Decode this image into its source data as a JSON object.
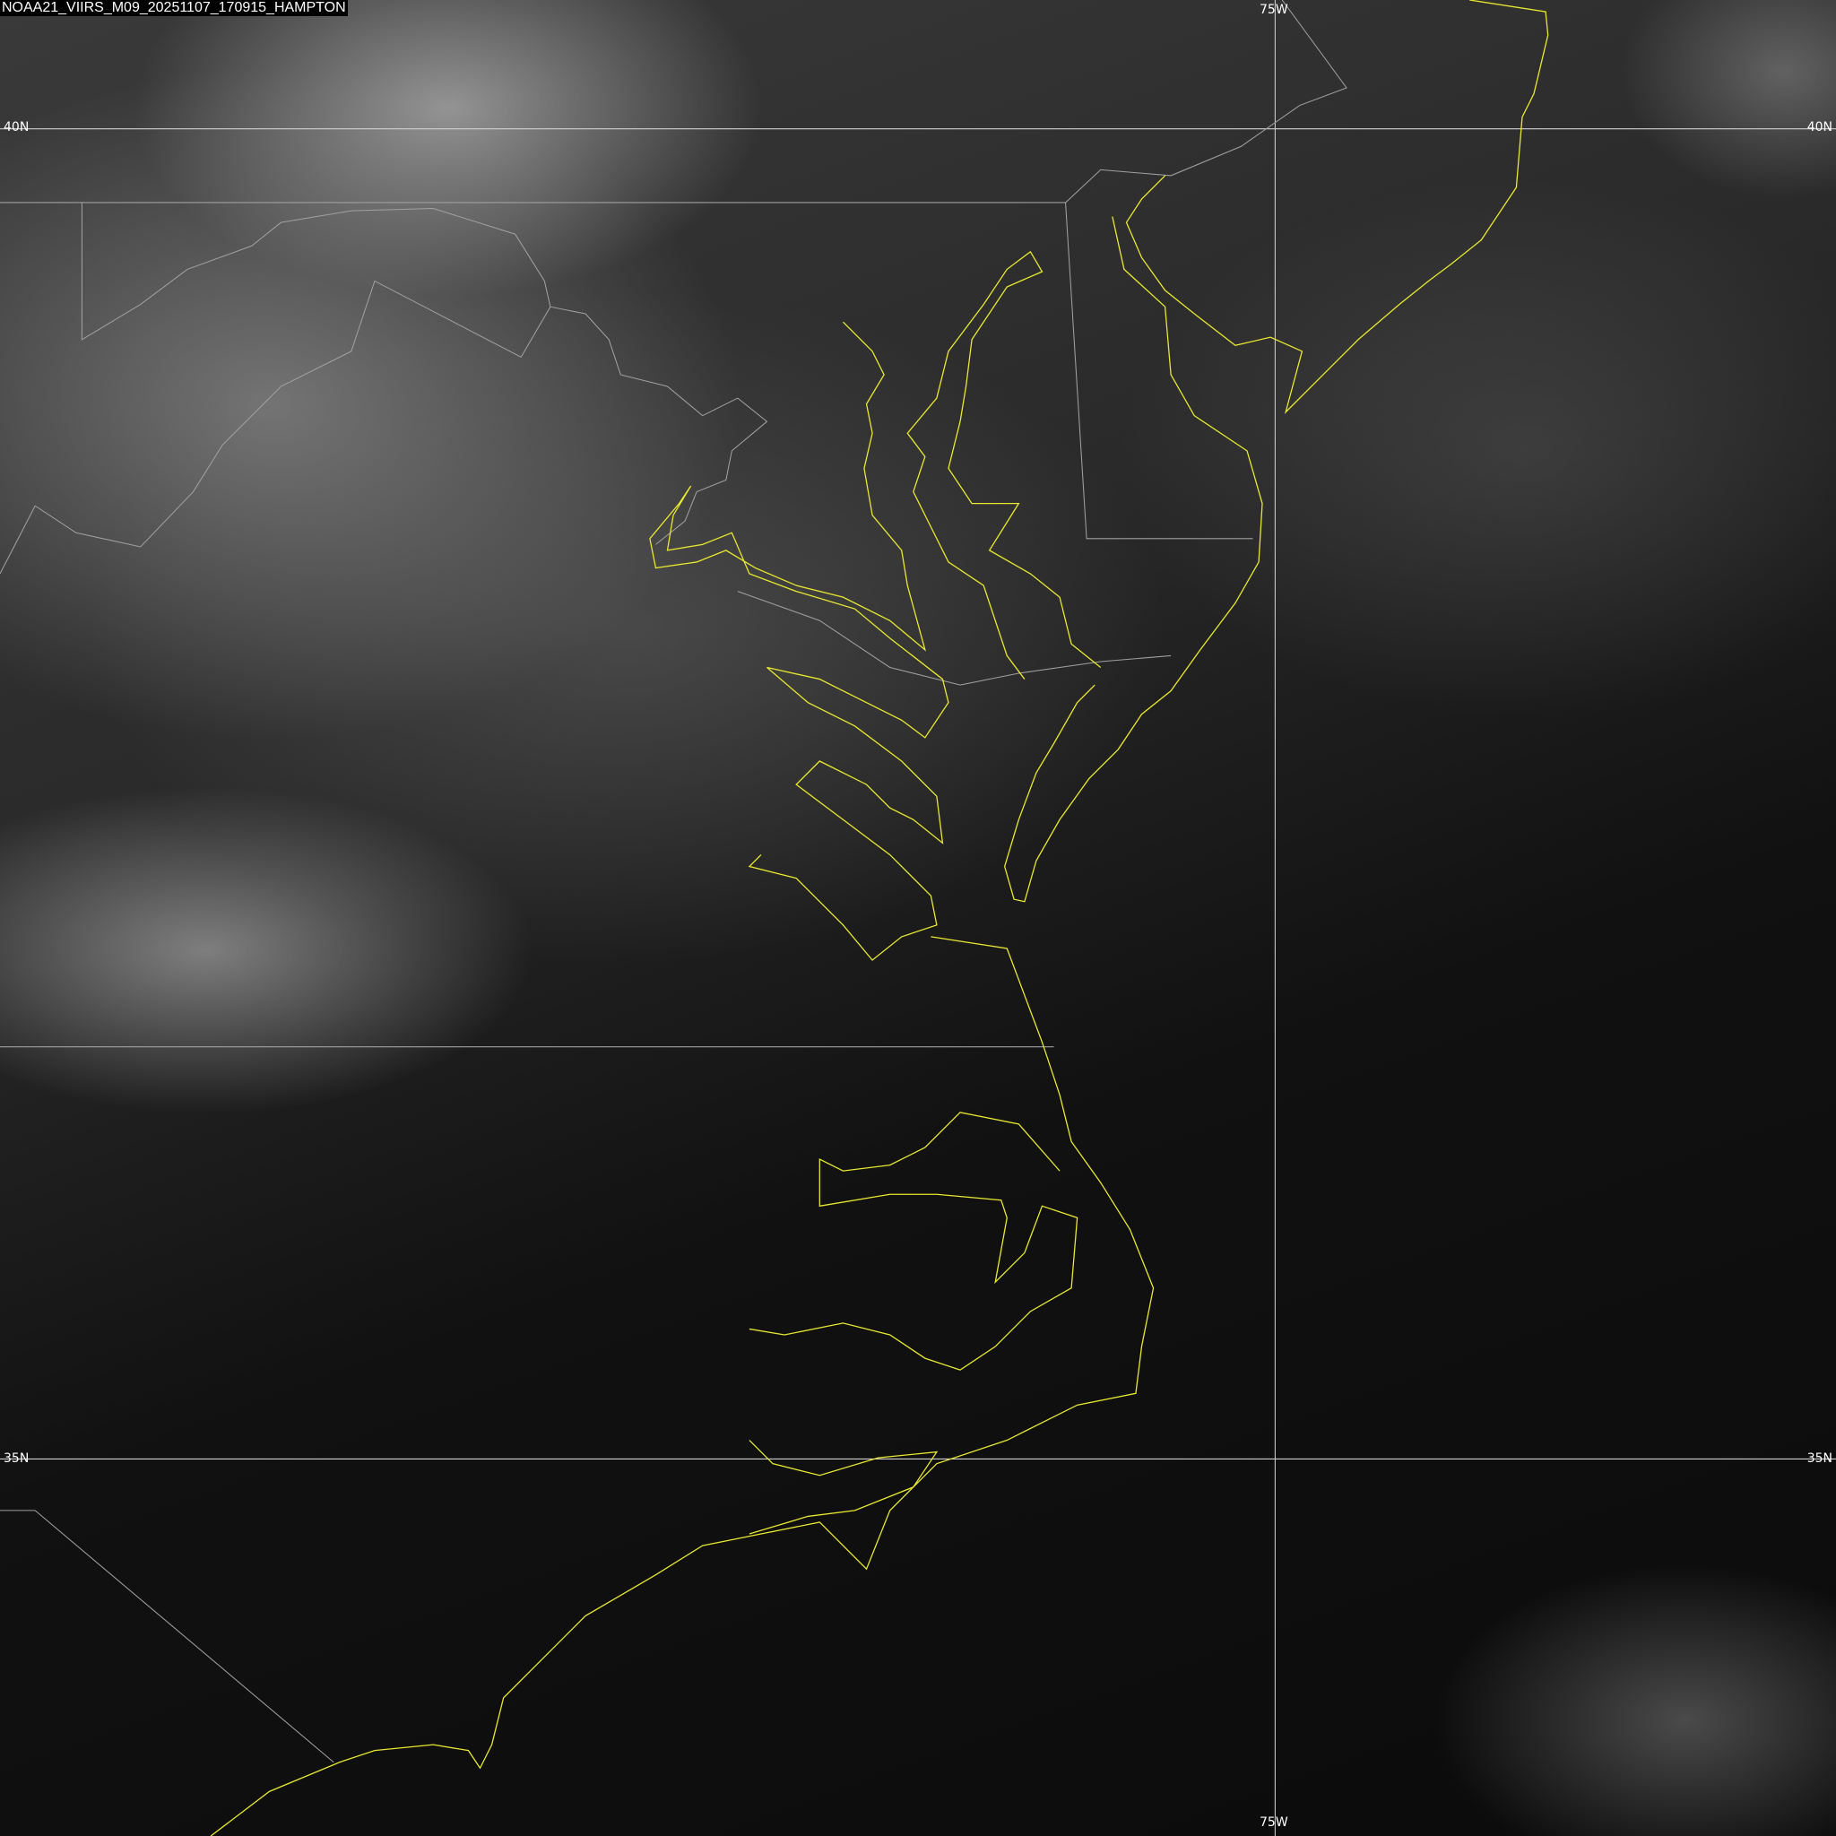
{
  "title": "NOAA21_VIIRS_M09_20251107_170915_HAMPTON",
  "grid": {
    "lon_label_top": "75W",
    "lon_label_bottom": "75W",
    "lat_40_left": "40N",
    "lat_40_right": "40N",
    "lat_35_left": "35N",
    "lat_35_right": "35N"
  },
  "colors": {
    "coastline": "#e8e830",
    "borders": "#a0a0a0",
    "grid": "#d0d0d0",
    "label_bg": "#000000"
  },
  "imagery": {
    "satellite": "NOAA-21",
    "instrument": "VIIRS",
    "band": "M09"
  }
}
